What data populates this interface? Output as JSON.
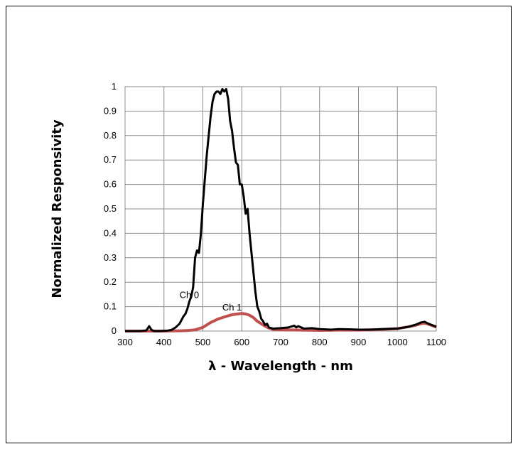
{
  "chart_data": {
    "type": "line",
    "title": "",
    "xlabel": "λ - Wavelength - nm",
    "ylabel": "Normalized Responsivity",
    "xlim": [
      300,
      1100
    ],
    "ylim": [
      0,
      1
    ],
    "x_ticks": [
      "300",
      "400",
      "500",
      "600",
      "700",
      "800",
      "900",
      "1000",
      "1100"
    ],
    "y_ticks": [
      "0",
      "0.1",
      "0.2",
      "0.3",
      "0.4",
      "0.5",
      "0.6",
      "0.7",
      "0.8",
      "0.9",
      "1"
    ],
    "grid": true,
    "legend": "none",
    "annotations": [
      {
        "text": "Ch 0",
        "x": 465,
        "y": 0.135
      },
      {
        "text": "Ch 1",
        "x": 575,
        "y": 0.085
      }
    ],
    "series": [
      {
        "name": "Ch 0",
        "color": "#000000",
        "x": [
          300,
          340,
          355,
          362,
          368,
          375,
          390,
          410,
          420,
          430,
          440,
          450,
          455,
          460,
          465,
          470,
          475,
          480,
          485,
          490,
          495,
          500,
          505,
          510,
          515,
          520,
          525,
          530,
          535,
          540,
          545,
          550,
          555,
          560,
          565,
          570,
          575,
          580,
          585,
          590,
          595,
          600,
          605,
          610,
          615,
          620,
          625,
          630,
          635,
          640,
          645,
          650,
          655,
          660,
          665,
          670,
          680,
          700,
          720,
          735,
          740,
          745,
          760,
          780,
          800,
          830,
          850,
          880,
          900,
          930,
          960,
          1000,
          1030,
          1050,
          1060,
          1070,
          1080,
          1090,
          1100
        ],
        "y": [
          0,
          0,
          0.003,
          0.02,
          0.005,
          0,
          0,
          0.002,
          0.005,
          0.015,
          0.03,
          0.06,
          0.07,
          0.09,
          0.12,
          0.14,
          0.18,
          0.3,
          0.33,
          0.32,
          0.4,
          0.52,
          0.62,
          0.72,
          0.8,
          0.88,
          0.94,
          0.97,
          0.98,
          0.98,
          0.97,
          0.99,
          0.98,
          0.99,
          0.95,
          0.86,
          0.82,
          0.75,
          0.69,
          0.68,
          0.6,
          0.6,
          0.55,
          0.48,
          0.5,
          0.4,
          0.32,
          0.24,
          0.16,
          0.1,
          0.08,
          0.05,
          0.04,
          0.025,
          0.03,
          0.015,
          0.01,
          0.012,
          0.015,
          0.022,
          0.015,
          0.02,
          0.01,
          0.012,
          0.008,
          0.006,
          0.008,
          0.007,
          0.006,
          0.006,
          0.008,
          0.01,
          0.018,
          0.028,
          0.035,
          0.038,
          0.03,
          0.024,
          0.018
        ]
      },
      {
        "name": "Ch 1",
        "color": "#c0504d",
        "x": [
          300,
          400,
          440,
          460,
          480,
          500,
          520,
          540,
          560,
          570,
          580,
          590,
          600,
          610,
          620,
          630,
          640,
          650,
          660,
          670,
          680,
          700,
          750,
          800,
          850,
          900,
          950,
          1000,
          1030,
          1050,
          1060,
          1070,
          1080,
          1090,
          1100
        ],
        "y": [
          0,
          0,
          0.001,
          0.002,
          0.005,
          0.015,
          0.035,
          0.05,
          0.06,
          0.065,
          0.068,
          0.07,
          0.072,
          0.07,
          0.065,
          0.055,
          0.04,
          0.03,
          0.02,
          0.012,
          0.007,
          0.005,
          0.004,
          0.003,
          0.004,
          0.004,
          0.006,
          0.01,
          0.018,
          0.025,
          0.03,
          0.032,
          0.028,
          0.022,
          0.016
        ]
      }
    ]
  }
}
